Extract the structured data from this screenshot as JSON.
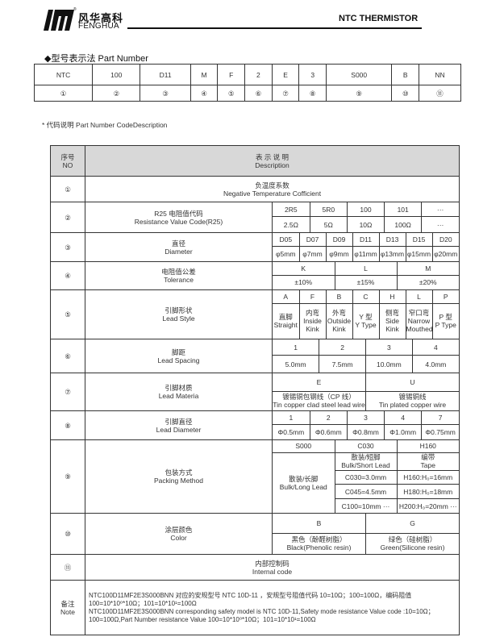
{
  "header": {
    "brand_cn": "风华高科",
    "brand_en": "FENGHUA",
    "registered": "®",
    "title": "NTC THERMISTOR"
  },
  "part_number": {
    "heading": "◆型号表示法 Part Number",
    "codes": [
      "NTC",
      "100",
      "D11",
      "M",
      "F",
      "2",
      "E",
      "3",
      "S000",
      "B",
      "NN"
    ],
    "indices": [
      "①",
      "②",
      "③",
      "④",
      "⑤",
      "⑥",
      "⑦",
      "⑧",
      "⑨",
      "⑩",
      "⑪"
    ]
  },
  "code_description_label": "* 代码说明 Part Number CodeDescription",
  "table": {
    "header": {
      "no_cn": "序号",
      "no_en": "NO",
      "desc_cn": "表 示 说 明",
      "desc_en": "Description"
    },
    "r1": {
      "no": "①",
      "cn": "负温度系数",
      "en": "Negative Temperature Cofficient"
    },
    "r2": {
      "no": "②",
      "label_cn": "R25 电阻值代码",
      "label_en": "Resistance Value Code(R25)",
      "codes": [
        "2R5",
        "5R0",
        "100",
        "101",
        "···"
      ],
      "values": [
        "2.5Ω",
        "5Ω",
        "10Ω",
        "100Ω",
        "···"
      ]
    },
    "r3": {
      "no": "③",
      "label_cn": "直径",
      "label_en": "Diameter",
      "codes": [
        "D05",
        "D07",
        "D09",
        "D11",
        "D13",
        "D15",
        "D20"
      ],
      "values": [
        "φ5mm",
        "φ7mm",
        "φ9mm",
        "φ11mm",
        "φ13mm",
        "φ15mm",
        "φ20mm"
      ]
    },
    "r4": {
      "no": "④",
      "label_cn": "电阻值公差",
      "label_en": "Tolerance",
      "codes": [
        "K",
        "L",
        "M"
      ],
      "values": [
        "±10%",
        "±15%",
        "±20%"
      ]
    },
    "r5": {
      "no": "⑤",
      "label_cn": "引脚形状",
      "label_en": "Lead Style",
      "codes": [
        "A",
        "F",
        "B",
        "C",
        "H",
        "L",
        "P"
      ],
      "values_cn": [
        "直脚",
        "内弯",
        "外弯",
        "Y 型",
        "侧弯",
        "窄口弯",
        "P 型"
      ],
      "values_en": [
        "Straight",
        "Inside Kink",
        "Outside Kink",
        "Y Type",
        "Side Kink",
        "Narrow Mouthed",
        "P Type"
      ]
    },
    "r6": {
      "no": "⑥",
      "label_cn": "脚距",
      "label_en": "Lead Spacing",
      "codes": [
        "1",
        "2",
        "3",
        "4"
      ],
      "values": [
        "5.0mm",
        "7.5mm",
        "10.0mm",
        "4.0mm"
      ]
    },
    "r7": {
      "no": "⑦",
      "label_cn": "引脚材质",
      "label_en": "Lead Materia",
      "codes": [
        "E",
        "U"
      ],
      "values_cn": [
        "镀锡铜包钢线（CP 线）",
        "镀锡铜线"
      ],
      "values_en": [
        "Tin copper clad steel lead wire",
        "Tin plated copper wire"
      ]
    },
    "r8": {
      "no": "⑧",
      "label_cn": "引脚直径",
      "label_en": "Lead Diameter",
      "codes": [
        "1",
        "2",
        "3",
        "4",
        "7"
      ],
      "values": [
        "Φ0.5mm",
        "Φ0.6mm",
        "Φ0.8mm",
        "Φ1.0mm",
        "Φ0.75mm"
      ]
    },
    "r9": {
      "no": "⑨",
      "label_cn": "包装方式",
      "label_en": "Packing Method",
      "codes": [
        "S000",
        "C030",
        "H160"
      ],
      "s000_cn": "散装/长脚",
      "s000_en": "Bulk/Long Lead",
      "c030_cn": "散装/短脚",
      "c030_en": "Bulk/Short Lead",
      "h160_cn": "编带",
      "h160_en": "Tape",
      "c_items": [
        "C030=3.0mm",
        "C045=4.5mm",
        "C100=10mm ···"
      ],
      "h_items": [
        "H160:H₀=16mm",
        "H180:H₀=18mm",
        "H200:H₀=20mm ···"
      ]
    },
    "r10": {
      "no": "⑩",
      "label_cn": "涂层颜色",
      "label_en": "Color",
      "codes": [
        "B",
        "G"
      ],
      "values_cn": [
        "黑色（酚醛树脂）",
        "绿色（硅树脂）"
      ],
      "values_en": [
        "Black(Phenolic resin)",
        "Green(Silicone resin)"
      ]
    },
    "r11": {
      "no": "⑪",
      "cn": "内部控制码",
      "en": "Internal code"
    },
    "note": {
      "label_cn": "备注",
      "label_en": "Note",
      "line1": "NTC100D11MF2E3S000BNN 对应的安规型号 NTC 10D-11 ，安规型号阻值代码 10=10Ω；100=100Ω，编码阻值 100=10*10⁰*10Ω；101=10*10¹=100Ω",
      "line2": "NTC100D11MF2E3S000BNN corresponding safety model is NTC 10D-11,Safety mode resistance Value code :10=10Ω；100=100Ω,Part Number resistance Value 100=10*10⁰*10Ω；101=10*10¹=100Ω"
    }
  }
}
